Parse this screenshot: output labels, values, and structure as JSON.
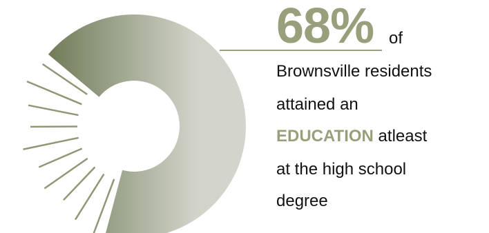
{
  "chart_data": {
    "type": "pie",
    "values": [
      68,
      32
    ],
    "highlight_percent": "68%",
    "accent_color": "#98a07b",
    "segment_color_light": "#d2d4ca",
    "segment_color_dark": "#6f7c58",
    "ray_color": "#8f9775"
  },
  "caption": {
    "of": "of",
    "line1": "Brownsville residents",
    "line2": "attained an",
    "line3_emphasis": "EDUCATION",
    "line3_rest": " atleast",
    "line4": "at the high school",
    "line5": "degree"
  }
}
